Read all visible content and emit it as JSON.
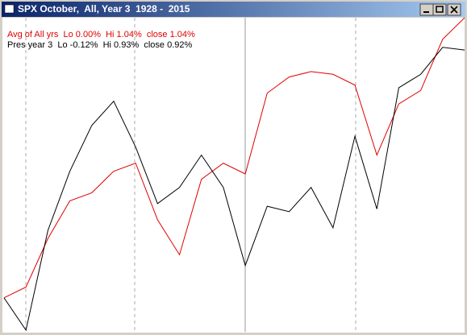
{
  "chart_data": {
    "type": "line",
    "title": "SPX October,  All, Year 3  1928 -  2015",
    "series": [
      {
        "name": "Avg of All yrs  Lo 0.00%  Hi 1.04%  close 1.04%",
        "color": "#e00000",
        "values": [
          0.0,
          0.04,
          0.22,
          0.36,
          0.39,
          0.47,
          0.5,
          0.29,
          0.16,
          0.44,
          0.5,
          0.46,
          0.76,
          0.82,
          0.84,
          0.83,
          0.79,
          0.53,
          0.72,
          0.77,
          0.96,
          1.04
        ]
      },
      {
        "name": "Pres year 3  Lo -0.12%  Hi 0.93%  close 0.92%",
        "color": "#000000",
        "values": [
          0.0,
          -0.12,
          0.25,
          0.47,
          0.64,
          0.73,
          0.56,
          0.35,
          0.41,
          0.53,
          0.41,
          0.12,
          0.34,
          0.32,
          0.41,
          0.26,
          0.6,
          0.33,
          0.78,
          0.83,
          0.93,
          0.92
        ]
      }
    ]
  }
}
